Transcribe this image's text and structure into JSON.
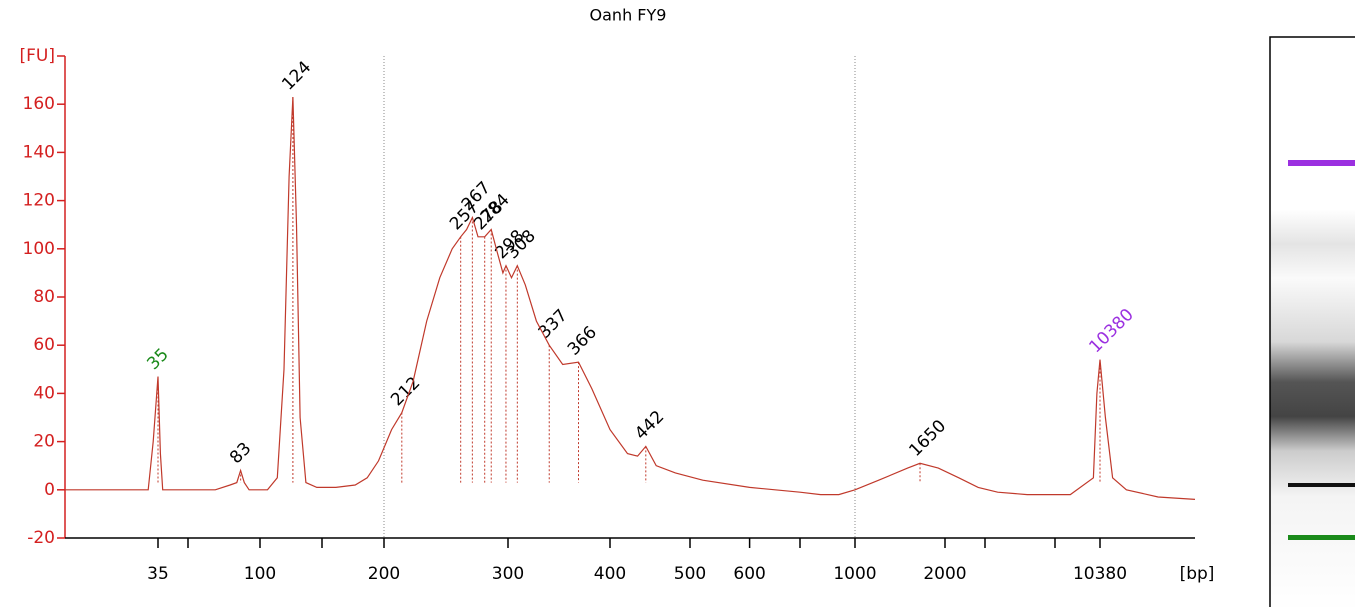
{
  "chart_data": {
    "type": "line",
    "title": "Oanh FY9",
    "xlabel": "[bp]",
    "xlim": [
      20,
      15000
    ],
    "xticks": [
      35,
      100,
      200,
      300,
      400,
      500,
      600,
      1000,
      2000,
      10380
    ],
    "xminorticks": [
      50,
      150,
      700,
      3000,
      7000
    ],
    "ylim": [
      -20,
      180
    ],
    "yticks": [
      -20,
      0,
      20,
      40,
      60,
      80,
      100,
      120,
      140,
      160,
      {
        "value": 180,
        "label": "[FU]"
      }
    ],
    "vlines": [
      200,
      1000
    ],
    "series": [
      {
        "color": "#c0392b",
        "x": [
          20,
          25,
          30,
          33,
          34,
          35,
          36,
          37,
          45,
          65,
          75,
          80,
          83,
          86,
          90,
          105,
          112,
          117,
          121,
          124,
          127,
          130,
          135,
          145,
          160,
          175,
          185,
          195,
          205,
          212,
          220,
          230,
          240,
          250,
          257,
          262,
          267,
          272,
          278,
          284,
          290,
          295,
          298,
          303,
          308,
          315,
          325,
          337,
          350,
          366,
          380,
          400,
          420,
          432,
          442,
          455,
          480,
          520,
          600,
          700,
          800,
          900,
          1000,
          1200,
          1500,
          1650,
          1900,
          2300,
          2800,
          3500,
          5000,
          8000,
          9800,
          10100,
          10380,
          10600,
          10900,
          11500,
          13000,
          15000
        ],
        "values": [
          0,
          0,
          0,
          0,
          20,
          47,
          15,
          0,
          0,
          0,
          2,
          3,
          8,
          3,
          0,
          0,
          5,
          50,
          130,
          163,
          110,
          30,
          3,
          1,
          1,
          2,
          5,
          12,
          25,
          32,
          45,
          70,
          88,
          100,
          105,
          108,
          113,
          105,
          105,
          108,
          98,
          90,
          93,
          88,
          93,
          85,
          70,
          60,
          52,
          53,
          42,
          25,
          15,
          14,
          18,
          10,
          7,
          4,
          1,
          -1,
          -2,
          -2,
          0,
          4,
          9,
          11,
          9,
          5,
          1,
          -1,
          -2,
          -2,
          5,
          40,
          54,
          30,
          5,
          0,
          -3,
          -4
        ]
      }
    ],
    "peaks": {
      "x": [
        35,
        83,
        124,
        212,
        257,
        267,
        278,
        284,
        298,
        308,
        337,
        366,
        442,
        1650,
        10380
      ],
      "values": [
        47,
        8,
        163,
        32,
        105,
        113,
        105,
        108,
        93,
        93,
        60,
        53,
        18,
        11,
        54
      ],
      "colors": [
        "#1a8a1a",
        "#000000",
        "#000000",
        "#000000",
        "#000000",
        "#000000",
        "#000000",
        "#000000",
        "#000000",
        "#000000",
        "#000000",
        "#000000",
        "#000000",
        "#000000",
        "#9b30e0"
      ]
    }
  }
}
